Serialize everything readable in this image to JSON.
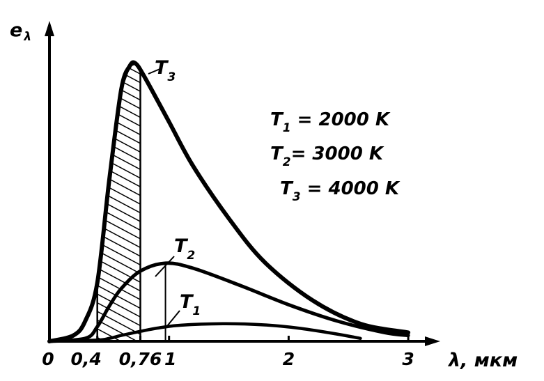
{
  "chart_data": {
    "type": "line",
    "title": "",
    "xlabel": "λ, мкм",
    "ylabel": "eλ",
    "xlim": [
      0,
      3.1
    ],
    "ylim": [
      0,
      1.0
    ],
    "grid": false,
    "x_ticks": [
      {
        "value": 0,
        "label": "0"
      },
      {
        "value": 0.4,
        "label": "0,4"
      },
      {
        "value": 0.76,
        "label": "0,76"
      },
      {
        "value": 1,
        "label": "1"
      },
      {
        "value": 2,
        "label": "2"
      },
      {
        "value": 3,
        "label": "3"
      }
    ],
    "series": [
      {
        "name": "T1",
        "label_main": "T",
        "label_sub": "1",
        "temperature_K": 2000,
        "peak_x": 1.45,
        "x": [
          0,
          0.4,
          0.5,
          0.6,
          0.76,
          0.9,
          1.1,
          1.45,
          1.8,
          2.1,
          2.4,
          2.6
        ],
        "y": [
          0,
          0.004,
          0.01,
          0.02,
          0.034,
          0.045,
          0.055,
          0.06,
          0.056,
          0.044,
          0.025,
          0.01
        ]
      },
      {
        "name": "T2",
        "label_main": "T",
        "label_sub": "2",
        "temperature_K": 3000,
        "peak_x": 0.97,
        "x": [
          0,
          0.3,
          0.4,
          0.5,
          0.6,
          0.76,
          0.97,
          1.2,
          1.6,
          2.0,
          2.4,
          2.8,
          3.0
        ],
        "y": [
          0,
          0.01,
          0.05,
          0.12,
          0.18,
          0.24,
          0.267,
          0.25,
          0.19,
          0.125,
          0.07,
          0.03,
          0.02
        ]
      },
      {
        "name": "T3",
        "label_main": "T",
        "label_sub": "3",
        "temperature_K": 4000,
        "peak_x": 0.72,
        "x": [
          0,
          0.2,
          0.3,
          0.4,
          0.5,
          0.6,
          0.67,
          0.72,
          0.8,
          1.0,
          1.2,
          1.5,
          1.8,
          2.2,
          2.6,
          3.0
        ],
        "y": [
          0,
          0.02,
          0.07,
          0.2,
          0.55,
          0.86,
          0.94,
          0.95,
          0.9,
          0.75,
          0.6,
          0.42,
          0.27,
          0.14,
          0.06,
          0.03
        ]
      }
    ],
    "shaded_region": {
      "x_from": 0.4,
      "x_to": 0.76,
      "under_series": "T3",
      "pattern": "hatched"
    },
    "legend": {
      "placement": "top-right",
      "entries": [
        {
          "main": "T",
          "sub": "1",
          "text": " = 2000 K"
        },
        {
          "main": "T",
          "sub": "2",
          "text": "= 3000 K"
        },
        {
          "main": "T",
          "sub": "3",
          "text": " = 4000 K"
        }
      ]
    },
    "y_label_parts": {
      "main": "e",
      "sub": "λ"
    }
  }
}
